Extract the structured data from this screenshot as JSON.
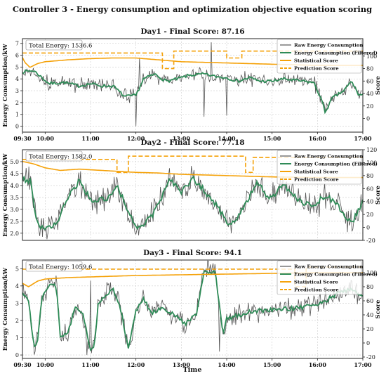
{
  "figure_title": "Controller 3 - Energy consumption and optimization objective equation scoring",
  "xlabel": "Time",
  "colors": {
    "raw": "#555555",
    "filtered": "#2e8b57",
    "statistical": "#f5a20a",
    "prediction": "#f5a20a",
    "grid": "#cccccc"
  },
  "chart_data": [
    {
      "type": "line",
      "title": "Day1 - Final Score: 87.16",
      "total_energy_label": "Total Energy: 1536.6",
      "ylabel": "Energy Consumption/kW",
      "y2label": "Score",
      "ylim": [
        -0.5,
        7.4
      ],
      "yticks": [
        0,
        1,
        2,
        3,
        4,
        5,
        6,
        7
      ],
      "y2lim": [
        -22,
        128
      ],
      "y2ticks": [
        0,
        20,
        40,
        60,
        80,
        100
      ],
      "xlim": [
        "09:30",
        "17:00"
      ],
      "xticks": [
        "09:30",
        "10:00",
        "11:00",
        "12:00",
        "13:00",
        "14:00",
        "15:00",
        "16:00",
        "17:00"
      ],
      "legend": [
        "Raw Energy Consumption",
        "Energy Consumption (Filtered)",
        "Statistical Score",
        "Prediction Score"
      ],
      "filtered_anchors": [
        [
          "09:30",
          4.6
        ],
        [
          "09:45",
          4.7
        ],
        [
          "10:05",
          3.6
        ],
        [
          "10:25",
          3.7
        ],
        [
          "10:45",
          3.4
        ],
        [
          "11:00",
          3.6
        ],
        [
          "11:15",
          3.4
        ],
        [
          "11:30",
          3.4
        ],
        [
          "11:45",
          2.5
        ],
        [
          "12:00",
          2.6
        ],
        [
          "12:10",
          4.0
        ],
        [
          "12:25",
          4.4
        ],
        [
          "12:40",
          3.8
        ],
        [
          "12:55",
          4.0
        ],
        [
          "13:10",
          4.3
        ],
        [
          "13:30",
          4.4
        ],
        [
          "13:45",
          4.2
        ],
        [
          "14:00",
          4.1
        ],
        [
          "14:15",
          3.8
        ],
        [
          "14:30",
          4.1
        ],
        [
          "14:45",
          3.8
        ],
        [
          "15:00",
          3.8
        ],
        [
          "15:15",
          4.0
        ],
        [
          "15:40",
          3.8
        ],
        [
          "15:55",
          3.7
        ],
        [
          "16:05",
          2.3
        ],
        [
          "16:10",
          1.2
        ],
        [
          "16:20",
          2.4
        ],
        [
          "16:35",
          3.0
        ],
        [
          "16:45",
          3.8
        ],
        [
          "16:55",
          2.6
        ],
        [
          "17:00",
          2.7
        ]
      ],
      "statistical_anchors": [
        [
          "09:30",
          98
        ],
        [
          "09:33",
          90
        ],
        [
          "09:40",
          82
        ],
        [
          "09:50",
          88
        ],
        [
          "10:00",
          91
        ],
        [
          "10:30",
          94
        ],
        [
          "11:00",
          96
        ],
        [
          "11:30",
          97
        ],
        [
          "12:00",
          97
        ],
        [
          "12:30",
          94
        ],
        [
          "13:00",
          91
        ],
        [
          "13:30",
          90
        ],
        [
          "14:00",
          89
        ],
        [
          "14:30",
          88
        ],
        [
          "15:00",
          87
        ],
        [
          "15:30",
          86
        ],
        [
          "16:00",
          85
        ],
        [
          "16:30",
          85
        ],
        [
          "17:00",
          85
        ]
      ],
      "prediction_segments": [
        [
          "09:30",
          105
        ],
        [
          "12:35",
          105
        ],
        [
          "12:35",
          80
        ],
        [
          "12:50",
          80
        ],
        [
          "12:50",
          108
        ],
        [
          "14:00",
          108
        ],
        [
          "14:00",
          97
        ],
        [
          "14:20",
          97
        ],
        [
          "14:20",
          108
        ],
        [
          "17:00",
          108
        ]
      ],
      "raw_noise": 0.55,
      "raw_spikes": [
        [
          "12:00",
          0.0
        ],
        [
          "12:05",
          5.8
        ],
        [
          "13:30",
          0.8
        ],
        [
          "13:40",
          7.1
        ],
        [
          "14:00",
          0.9
        ]
      ]
    },
    {
      "type": "line",
      "title": "Day2 - Final Score: 77.18",
      "total_energy_label": "Total Energy: 1582.0",
      "ylabel": "Energy Consumption/kW",
      "y2label": "Score",
      "ylim": [
        1.7,
        5.5
      ],
      "yticks": [
        2.0,
        2.5,
        3.0,
        3.5,
        4.0,
        4.5,
        5.0
      ],
      "y2lim": [
        -20,
        120
      ],
      "y2ticks": [
        -20,
        0,
        20,
        40,
        60,
        80,
        100,
        120
      ],
      "xlim": [
        "09:30",
        "17:00"
      ],
      "xticks": [],
      "legend": [
        "Raw Energy Consumption",
        "Energy Consumption (Filtered)",
        "Statistical Score",
        "Prediction Score"
      ],
      "filtered_anchors": [
        [
          "09:30",
          4.3
        ],
        [
          "09:40",
          4.2
        ],
        [
          "09:50",
          2.4
        ],
        [
          "10:00",
          2.1
        ],
        [
          "10:15",
          2.4
        ],
        [
          "10:30",
          3.5
        ],
        [
          "10:45",
          4.2
        ],
        [
          "11:00",
          3.4
        ],
        [
          "11:20",
          3.4
        ],
        [
          "11:35",
          4.0
        ],
        [
          "11:50",
          2.9
        ],
        [
          "12:00",
          2.3
        ],
        [
          "12:10",
          2.3
        ],
        [
          "12:25",
          2.9
        ],
        [
          "12:45",
          4.3
        ],
        [
          "13:00",
          3.7
        ],
        [
          "13:15",
          4.3
        ],
        [
          "13:30",
          3.8
        ],
        [
          "13:50",
          3.0
        ],
        [
          "14:05",
          2.3
        ],
        [
          "14:25",
          3.2
        ],
        [
          "14:40",
          4.2
        ],
        [
          "14:55",
          3.4
        ],
        [
          "15:15",
          4.0
        ],
        [
          "15:35",
          3.4
        ],
        [
          "15:55",
          3.1
        ],
        [
          "16:10",
          3.6
        ],
        [
          "16:25",
          3.2
        ],
        [
          "16:45",
          2.4
        ],
        [
          "16:55",
          3.0
        ],
        [
          "17:00",
          3.3
        ]
      ],
      "statistical_anchors": [
        [
          "09:30",
          102
        ],
        [
          "09:45",
          98
        ],
        [
          "10:00",
          92
        ],
        [
          "10:20",
          88
        ],
        [
          "10:45",
          90
        ],
        [
          "11:00",
          89
        ],
        [
          "11:30",
          87
        ],
        [
          "12:00",
          85
        ],
        [
          "12:30",
          84
        ],
        [
          "13:00",
          82
        ],
        [
          "14:00",
          80
        ],
        [
          "15:00",
          78
        ],
        [
          "16:00",
          77
        ],
        [
          "17:00",
          77
        ]
      ],
      "prediction_segments": [
        [
          "09:30",
          105
        ],
        [
          "11:35",
          105
        ],
        [
          "11:35",
          85
        ],
        [
          "11:50",
          85
        ],
        [
          "11:50",
          110
        ],
        [
          "14:25",
          110
        ],
        [
          "14:25",
          85
        ],
        [
          "14:35",
          85
        ],
        [
          "14:35",
          108
        ],
        [
          "17:00",
          108
        ]
      ],
      "raw_noise": 0.5,
      "raw_spikes": []
    },
    {
      "type": "line",
      "title": "Day3 - Final Score: 94.1",
      "total_energy_label": "Total Energy: 1059.6",
      "ylabel": "Energy Consumption/kW",
      "y2label": "Score",
      "ylim": [
        -0.2,
        5.5
      ],
      "yticks": [
        0,
        1,
        2,
        3,
        4,
        5
      ],
      "y2lim": [
        -22,
        118
      ],
      "y2ticks": [
        -20,
        0,
        20,
        40,
        60,
        80,
        100
      ],
      "xlim": [
        "09:30",
        "17:00"
      ],
      "xticks": [
        "09:30",
        "10:00",
        "11:00",
        "12:00",
        "13:00",
        "14:00",
        "15:00",
        "16:00",
        "17:00"
      ],
      "legend": [
        "Raw Energy Consumption",
        "Energy Consumption (Filtered)",
        "Statistical Score",
        "Prediction Score"
      ],
      "filtered_anchors": [
        [
          "09:30",
          3.6
        ],
        [
          "09:38",
          3.2
        ],
        [
          "09:45",
          0.5
        ],
        [
          "09:50",
          0.8
        ],
        [
          "09:55",
          3.2
        ],
        [
          "10:05",
          4.1
        ],
        [
          "10:15",
          4.0
        ],
        [
          "10:20",
          1.0
        ],
        [
          "10:30",
          1.2
        ],
        [
          "10:40",
          2.8
        ],
        [
          "10:50",
          2.4
        ],
        [
          "11:00",
          0.3
        ],
        [
          "11:05",
          0.5
        ],
        [
          "11:10",
          2.9
        ],
        [
          "11:20",
          3.5
        ],
        [
          "11:30",
          3.8
        ],
        [
          "11:40",
          2.6
        ],
        [
          "11:50",
          0.4
        ],
        [
          "12:00",
          2.5
        ],
        [
          "12:10",
          3.3
        ],
        [
          "12:20",
          2.4
        ],
        [
          "12:35",
          2.8
        ],
        [
          "12:50",
          2.3
        ],
        [
          "13:05",
          1.8
        ],
        [
          "13:20",
          2.4
        ],
        [
          "13:30",
          4.8
        ],
        [
          "13:45",
          4.8
        ],
        [
          "13:55",
          1.2
        ],
        [
          "14:00",
          2.1
        ],
        [
          "14:30",
          2.5
        ],
        [
          "15:00",
          2.6
        ],
        [
          "15:30",
          2.7
        ],
        [
          "16:00",
          2.9
        ],
        [
          "16:30",
          3.6
        ],
        [
          "16:45",
          3.9
        ],
        [
          "17:00",
          3.3
        ]
      ],
      "statistical_anchors": [
        [
          "09:30",
          85
        ],
        [
          "09:38",
          80
        ],
        [
          "09:50",
          88
        ],
        [
          "10:00",
          91
        ],
        [
          "10:30",
          93
        ],
        [
          "11:00",
          94
        ],
        [
          "11:30",
          95
        ],
        [
          "12:00",
          96
        ],
        [
          "13:00",
          97
        ],
        [
          "14:00",
          98
        ],
        [
          "15:00",
          99
        ],
        [
          "16:00",
          100
        ],
        [
          "17:00",
          100
        ]
      ],
      "prediction_segments": [
        [
          "09:30",
          105
        ],
        [
          "15:30",
          105
        ],
        [
          "15:30",
          80
        ],
        [
          "15:45",
          80
        ],
        [
          "15:45",
          108
        ],
        [
          "17:00",
          108
        ]
      ],
      "raw_noise": 0.55,
      "raw_spikes": [
        [
          "10:55",
          0.0
        ],
        [
          "11:00",
          4.3
        ],
        [
          "13:35",
          5.5
        ],
        [
          "13:50",
          0.2
        ]
      ]
    }
  ]
}
